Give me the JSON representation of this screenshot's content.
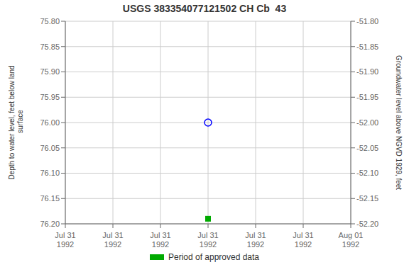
{
  "chart_data": {
    "type": "scatter",
    "title": "USGS 383354077121502 CH Cb  43",
    "ylabel": "Depth to water level, feet below land\n surface",
    "y2label": "Groundwater level above NGVD 1929, feet",
    "categories": [
      "Jul 31\n1992",
      "Jul 31\n1992",
      "Jul 31\n1992",
      "Jul 31\n1992",
      "Jul 31\n1992",
      "Jul 31\n1992",
      "Aug 01\n1992"
    ],
    "series": [
      {
        "color": "#0000ff",
        "marker": "circle_open",
        "values": [
          null,
          null,
          null,
          76.0,
          null,
          null,
          null
        ]
      },
      {
        "name": "Period of approved data",
        "color": "#00aa00",
        "marker": "square",
        "values": [
          null,
          null,
          null,
          76.19,
          null,
          null,
          null
        ]
      }
    ],
    "ylim": [
      76.2,
      75.8
    ],
    "yticks": [
      {
        "value": 75.8,
        "label": "75.80"
      },
      {
        "value": 75.85,
        "label": "75.85"
      },
      {
        "value": 75.9,
        "label": "75.90"
      },
      {
        "value": 75.95,
        "label": "75.95"
      },
      {
        "value": 76.0,
        "label": "76.00"
      },
      {
        "value": 76.05,
        "label": "76.05"
      },
      {
        "value": 76.1,
        "label": "76.10"
      },
      {
        "value": 76.15,
        "label": "76.15"
      },
      {
        "value": 76.2,
        "label": "76.20"
      }
    ],
    "y2lim": [
      -52.2,
      -51.8
    ],
    "y2ticks": [
      {
        "value": -51.8,
        "label": "-51.80"
      },
      {
        "value": -51.85,
        "label": "-51.85"
      },
      {
        "value": -51.9,
        "label": "-51.90"
      },
      {
        "value": -51.95,
        "label": "-51.95"
      },
      {
        "value": -52.0,
        "label": "-52.00"
      },
      {
        "value": -52.05,
        "label": "-52.05"
      },
      {
        "value": -52.1,
        "label": "-52.10"
      },
      {
        "value": -52.15,
        "label": "-52.15"
      },
      {
        "value": -52.2,
        "label": "-52.20"
      }
    ],
    "grid": true
  }
}
